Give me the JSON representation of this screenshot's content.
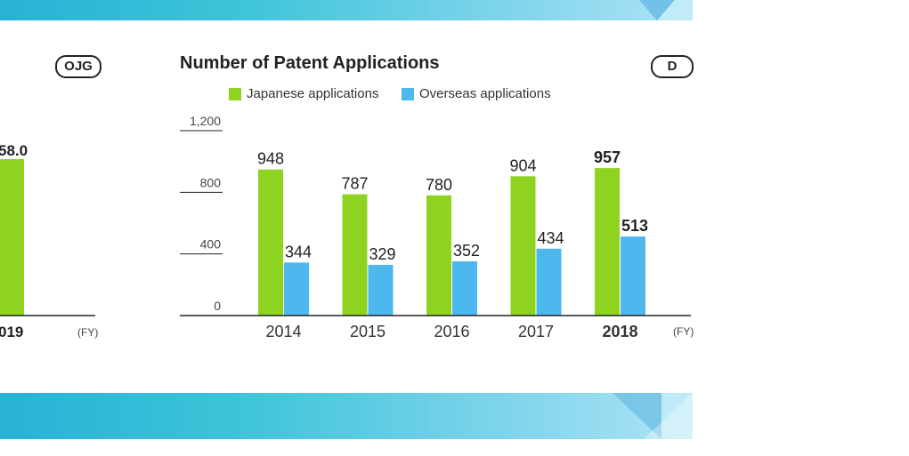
{
  "left_panel": {
    "badge": "OJG",
    "bar_value_label": "58.0",
    "year_label": "019",
    "fy_label": "(FY)",
    "bar_color": "#8ed31f"
  },
  "badge": "D",
  "colors": {
    "japanese": "#8ed31f",
    "overseas": "#4cb8ee",
    "axis": "#222222"
  },
  "chart_data": {
    "type": "bar",
    "title": "Number of Patent Applications",
    "categories": [
      "2014",
      "2015",
      "2016",
      "2017",
      "2018"
    ],
    "series": [
      {
        "name": "Japanese applications",
        "values": [
          948,
          787,
          780,
          904,
          957
        ],
        "labels": [
          "948",
          "787",
          "780",
          "904",
          "957"
        ]
      },
      {
        "name": "Overseas applications",
        "values": [
          344,
          329,
          352,
          434,
          513
        ],
        "labels": [
          "344",
          "329",
          "352",
          "434",
          "513"
        ]
      }
    ],
    "yticks": [
      "0",
      "400",
      "800",
      "1,200"
    ],
    "ylim": [
      0,
      1200
    ],
    "xunit": "(FY)",
    "highlight_category": "2018",
    "legend": "top"
  }
}
